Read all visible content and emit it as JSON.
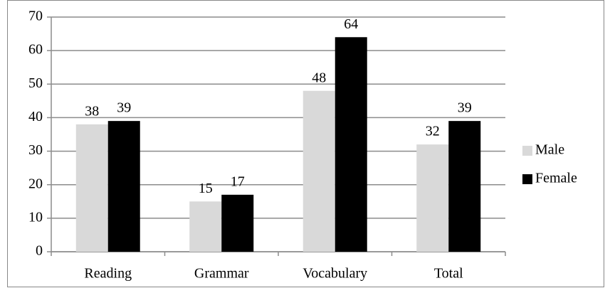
{
  "chart_data": {
    "type": "bar",
    "categories": [
      "Reading",
      "Grammar",
      "Vocabulary",
      "Total"
    ],
    "series": [
      {
        "name": "Male",
        "color": "#d9d9d9",
        "values": [
          38,
          15,
          48,
          32
        ]
      },
      {
        "name": "Female",
        "color": "#000000",
        "values": [
          39,
          17,
          64,
          39
        ]
      }
    ],
    "ylim": [
      0,
      70
    ],
    "yticks": [
      0,
      10,
      20,
      30,
      40,
      50,
      60,
      70
    ],
    "grid": true,
    "legend": "right"
  }
}
